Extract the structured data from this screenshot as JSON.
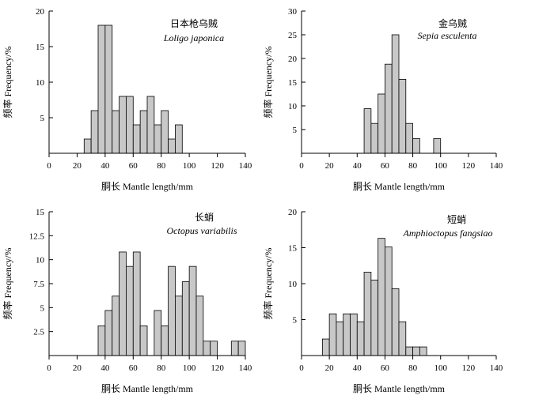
{
  "chart_data": [
    {
      "type": "bar",
      "title_cn": "日本枪乌贼",
      "title_latin": "Loligo japonica",
      "xlabel": "胴长 Mantle length/mm",
      "ylabel": "频率 Frequency/%",
      "xlim": [
        0,
        140
      ],
      "ylim": [
        0,
        20
      ],
      "xticks": [
        "0",
        "20",
        "40",
        "60",
        "80",
        "100",
        "120",
        "140"
      ],
      "yticks": [
        "5",
        "10",
        "15",
        "20"
      ],
      "bin_width": 5,
      "bins": [
        {
          "start": 25,
          "value": 2
        },
        {
          "start": 30,
          "value": 6
        },
        {
          "start": 35,
          "value": 18
        },
        {
          "start": 40,
          "value": 18
        },
        {
          "start": 45,
          "value": 6
        },
        {
          "start": 50,
          "value": 8
        },
        {
          "start": 55,
          "value": 8
        },
        {
          "start": 60,
          "value": 4
        },
        {
          "start": 65,
          "value": 6
        },
        {
          "start": 70,
          "value": 8
        },
        {
          "start": 75,
          "value": 4
        },
        {
          "start": 80,
          "value": 6
        },
        {
          "start": 85,
          "value": 2
        },
        {
          "start": 90,
          "value": 4
        }
      ]
    },
    {
      "type": "bar",
      "title_cn": "金乌贼",
      "title_latin": "Sepia esculenta",
      "xlabel": "胴长 Mantle length/mm",
      "ylabel": "频率 Frequency/%",
      "xlim": [
        0,
        140
      ],
      "ylim": [
        0,
        30
      ],
      "xticks": [
        "0",
        "20",
        "40",
        "60",
        "80",
        "100",
        "120",
        "140"
      ],
      "yticks": [
        "5",
        "10",
        "15",
        "20",
        "25",
        "30"
      ],
      "bin_width": 5,
      "bins": [
        {
          "start": 45,
          "value": 9.4
        },
        {
          "start": 50,
          "value": 6.3
        },
        {
          "start": 55,
          "value": 12.5
        },
        {
          "start": 60,
          "value": 18.8
        },
        {
          "start": 65,
          "value": 25
        },
        {
          "start": 70,
          "value": 15.6
        },
        {
          "start": 75,
          "value": 6.3
        },
        {
          "start": 80,
          "value": 3.1
        },
        {
          "start": 95,
          "value": 3.1
        }
      ]
    },
    {
      "type": "bar",
      "title_cn": "长蛸",
      "title_latin": "Octopus variabilis",
      "xlabel": "胴长 Mantle length/mm",
      "ylabel": "频率 Frequency/%",
      "xlim": [
        0,
        140
      ],
      "ylim": [
        0,
        15
      ],
      "xticks": [
        "0",
        "20",
        "40",
        "60",
        "80",
        "100",
        "120",
        "140"
      ],
      "yticks": [
        "2.5",
        "5",
        "7.5",
        "10",
        "12.5",
        "15"
      ],
      "bin_width": 5,
      "bins": [
        {
          "start": 35,
          "value": 3.1
        },
        {
          "start": 40,
          "value": 4.7
        },
        {
          "start": 45,
          "value": 6.2
        },
        {
          "start": 50,
          "value": 10.8
        },
        {
          "start": 55,
          "value": 9.3
        },
        {
          "start": 60,
          "value": 10.8
        },
        {
          "start": 65,
          "value": 3.1
        },
        {
          "start": 75,
          "value": 4.7
        },
        {
          "start": 80,
          "value": 3.1
        },
        {
          "start": 85,
          "value": 9.3
        },
        {
          "start": 90,
          "value": 6.2
        },
        {
          "start": 95,
          "value": 7.7
        },
        {
          "start": 100,
          "value": 9.3
        },
        {
          "start": 105,
          "value": 6.2
        },
        {
          "start": 110,
          "value": 1.5
        },
        {
          "start": 115,
          "value": 1.5
        },
        {
          "start": 130,
          "value": 1.5
        },
        {
          "start": 135,
          "value": 1.5
        }
      ]
    },
    {
      "type": "bar",
      "title_cn": "短蛸",
      "title_latin": "Amphioctopus fangsiao",
      "xlabel": "胴长 Mantle length/mm",
      "ylabel": "频率 Frequency/%",
      "xlim": [
        0,
        140
      ],
      "ylim": [
        0,
        20
      ],
      "xticks": [
        "0",
        "20",
        "40",
        "60",
        "80",
        "100",
        "120",
        "140"
      ],
      "yticks": [
        "5",
        "10",
        "15",
        "20"
      ],
      "bin_width": 5,
      "bins": [
        {
          "start": 15,
          "value": 2.3
        },
        {
          "start": 20,
          "value": 5.8
        },
        {
          "start": 25,
          "value": 4.7
        },
        {
          "start": 30,
          "value": 5.8
        },
        {
          "start": 35,
          "value": 5.8
        },
        {
          "start": 40,
          "value": 4.7
        },
        {
          "start": 45,
          "value": 11.6
        },
        {
          "start": 50,
          "value": 10.5
        },
        {
          "start": 55,
          "value": 16.3
        },
        {
          "start": 60,
          "value": 15.1
        },
        {
          "start": 65,
          "value": 9.3
        },
        {
          "start": 70,
          "value": 4.7
        },
        {
          "start": 75,
          "value": 1.2
        },
        {
          "start": 80,
          "value": 1.2
        },
        {
          "start": 85,
          "value": 1.2
        }
      ]
    }
  ]
}
